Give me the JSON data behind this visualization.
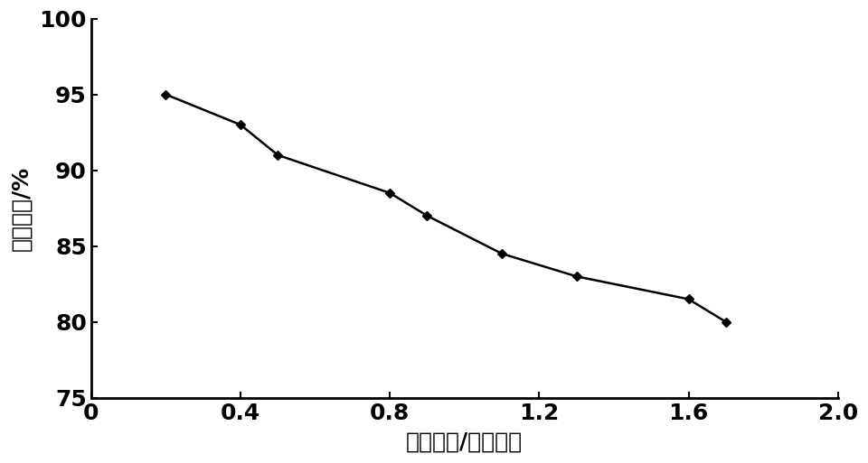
{
  "x": [
    0.2,
    0.4,
    0.5,
    0.8,
    0.9,
    1.1,
    1.3,
    1.6,
    1.7
  ],
  "y": [
    95.0,
    93.0,
    91.0,
    88.5,
    87.0,
    84.5,
    83.0,
    81.5,
    80.0
  ],
  "xlabel": "放电功率/额定功率",
  "ylabel": "放电效率/%",
  "xlim": [
    0,
    2.0
  ],
  "ylim": [
    75,
    100
  ],
  "xticks": [
    0,
    0.4,
    0.8,
    1.2,
    1.6,
    2.0
  ],
  "xticklabels": [
    "0",
    "0.4",
    "0.8",
    "1.2",
    "1.6",
    "2.0"
  ],
  "yticks": [
    75,
    80,
    85,
    90,
    95,
    100
  ],
  "yticklabels": [
    "75",
    "80",
    "85",
    "90",
    "95",
    "100"
  ],
  "line_color": "#000000",
  "marker": "D",
  "marker_size": 5,
  "linewidth": 1.8,
  "background_color": "#ffffff",
  "xlabel_fontsize": 18,
  "ylabel_fontsize": 18,
  "tick_fontsize": 18
}
